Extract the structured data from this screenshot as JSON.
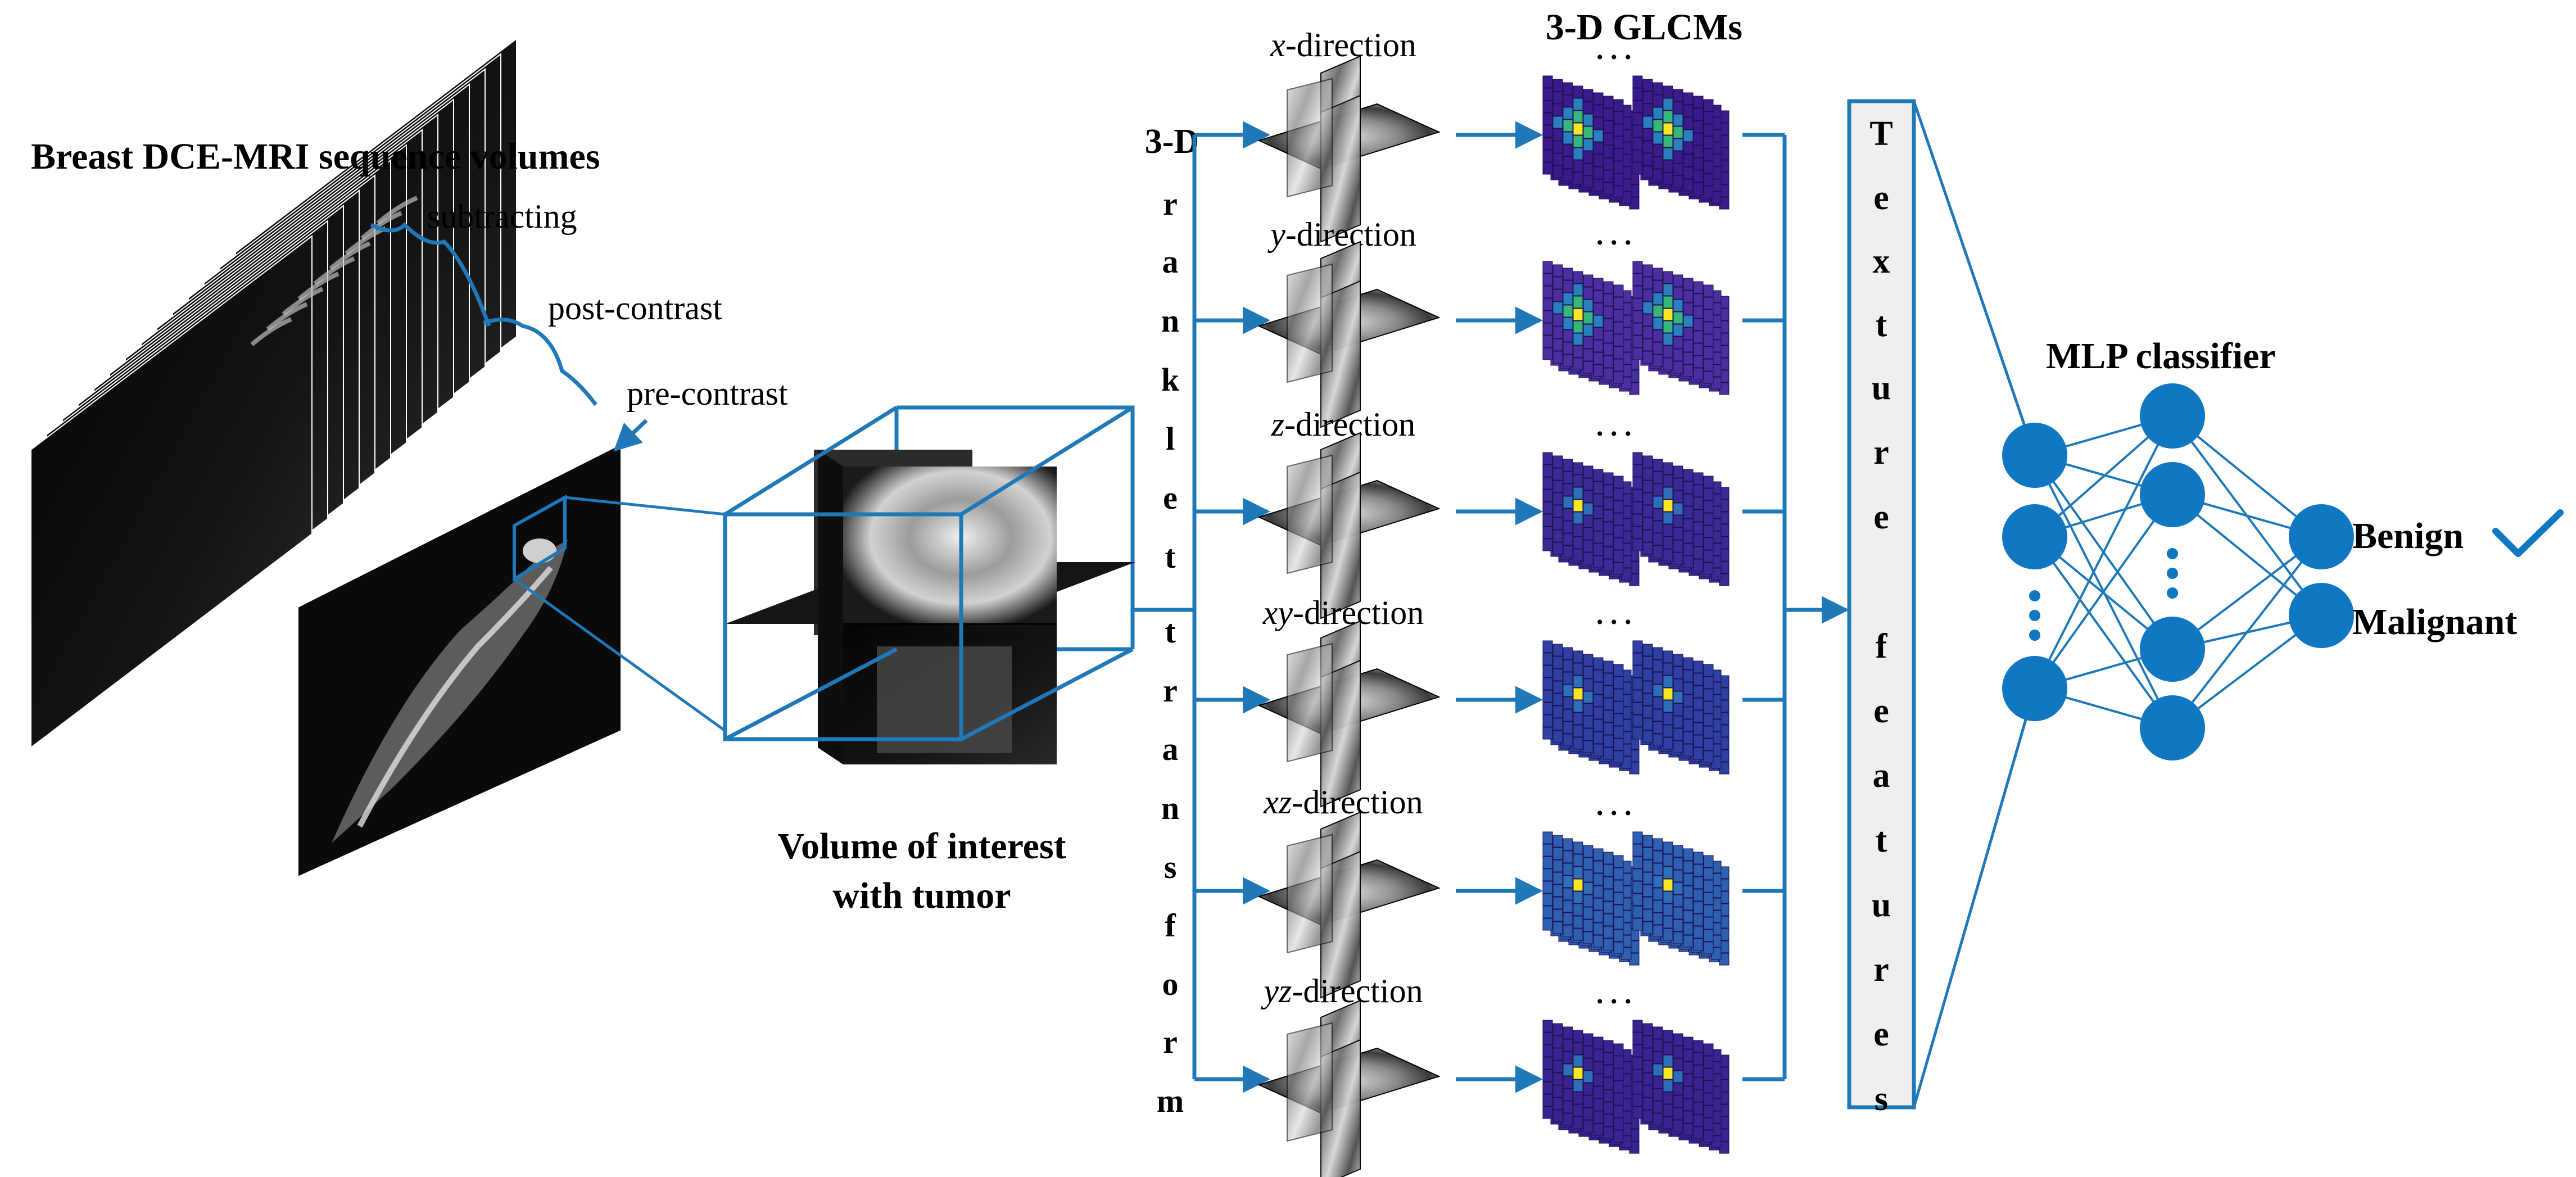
{
  "mri": {
    "title": "Breast DCE-MRI sequence volumes",
    "labels": [
      "subtracting",
      "post-contrast",
      "pre-contrast"
    ]
  },
  "voi": {
    "line1": "Volume of interest",
    "line2": "with tumor"
  },
  "ranklet": {
    "head": "3-D",
    "letters": [
      "r",
      "a",
      "n",
      "k",
      "l",
      "e",
      "t",
      "t",
      "r",
      "a",
      "n",
      "s",
      "f",
      "o",
      "r",
      "m"
    ]
  },
  "directions": [
    {
      "var": "x",
      "suffix": "-direction"
    },
    {
      "var": "y",
      "suffix": "-direction"
    },
    {
      "var": "z",
      "suffix": "-direction"
    },
    {
      "var": "xy",
      "suffix": "-direction"
    },
    {
      "var": "xz",
      "suffix": "-direction"
    },
    {
      "var": "yz",
      "suffix": "-direction"
    }
  ],
  "glcm": {
    "title": "3-D GLCMs",
    "ellipsis": ". . ."
  },
  "texture": {
    "letters": [
      "T",
      "e",
      "x",
      "t",
      "u",
      "r",
      "e",
      "f",
      "e",
      "a",
      "t",
      "u",
      "r",
      "e",
      "s"
    ]
  },
  "mlp": {
    "title": "MLP classifier",
    "outputs": [
      "Benign",
      "Malignant"
    ],
    "checkmark": "check-icon"
  },
  "colors": {
    "line": "#1f78b8",
    "node": "#1077c3",
    "glcm_bg": "#3b1a8c",
    "glcm_hot": "#f7e623",
    "glcm_warm": "#35b779",
    "glcm_mid": "#2a7fbf",
    "texture_bg": "#efefef"
  }
}
